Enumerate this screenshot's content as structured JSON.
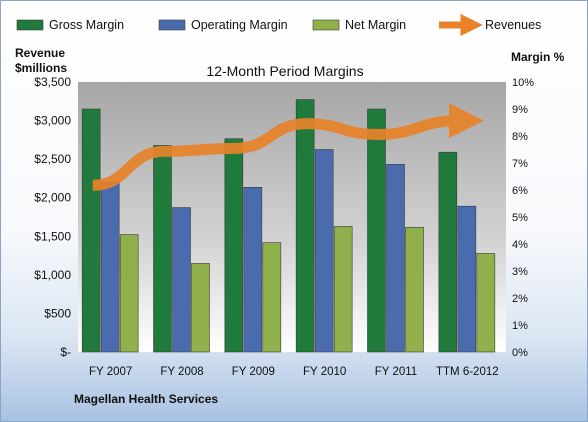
{
  "chart_data": {
    "type": "bar",
    "title": "12-Month Period Margins",
    "footer": "Magellan Health Services",
    "left_axis_title_1": "Revenue",
    "left_axis_title_2": "$millions",
    "right_axis_title": "Margin %",
    "categories": [
      "FY 2007",
      "FY 2008",
      "FY 2009",
      "FY 2010",
      "FY 2011",
      "TTM 6-2012"
    ],
    "left_ticks": [
      "$-",
      "$500",
      "$1,000",
      "$1,500",
      "$2,000",
      "$2,500",
      "$3,000",
      "$3,500"
    ],
    "right_ticks": [
      "0%",
      "1%",
      "2%",
      "3%",
      "4%",
      "5%",
      "6%",
      "7%",
      "8%",
      "9%",
      "10%"
    ],
    "ylim_left": [
      0,
      3500
    ],
    "ylim_right": [
      0,
      10
    ],
    "series": [
      {
        "name": "Gross Margin",
        "axis": "right",
        "color": "#1f7a3c",
        "values": [
          9.0,
          7.65,
          7.9,
          9.35,
          9.0,
          7.4
        ]
      },
      {
        "name": "Operating Margin",
        "axis": "right",
        "color": "#4a6cae",
        "values": [
          6.3,
          5.35,
          6.1,
          7.5,
          6.95,
          5.4
        ]
      },
      {
        "name": "Net Margin",
        "axis": "right",
        "color": "#8fb04a",
        "values": [
          4.35,
          3.28,
          4.05,
          4.65,
          4.62,
          3.65
        ]
      },
      {
        "name": "Revenues",
        "axis": "left",
        "type": "line",
        "color": "#e8832a",
        "values": [
          2160,
          2600,
          2640,
          2960,
          2820,
          3000
        ]
      }
    ]
  }
}
